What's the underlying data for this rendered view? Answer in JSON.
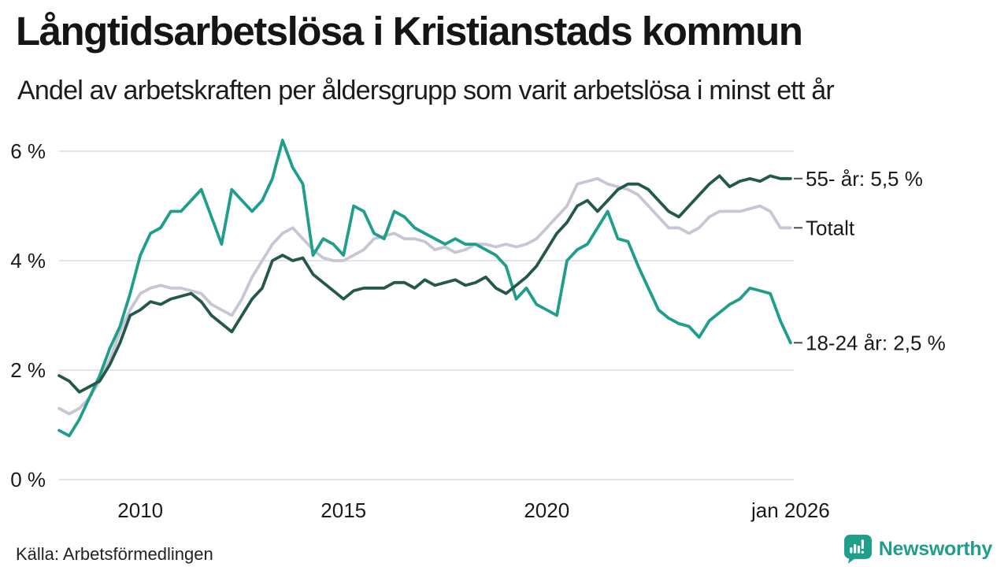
{
  "header": {
    "title": "Långtidsarbetslösa i Kristianstads kommun",
    "subtitle": "Andel av arbetskraften per åldersgrupp som varit arbetslösa i minst ett år"
  },
  "footer": {
    "source": "Källa: Arbetsförmedlingen",
    "brand": "Newsworthy"
  },
  "colors": {
    "accent_teal": "#1f9e8b",
    "dark_green": "#24584a",
    "total_gray": "#c8c6d4",
    "gridline": "#e4e3e9",
    "text": "#1a1a1a",
    "connector": "#4a4a4a"
  },
  "chart_data": {
    "type": "line",
    "title": "Långtidsarbetslösa i Kristianstads kommun",
    "subtitle": "Andel av arbetskraften per åldersgrupp som varit arbetslösa i minst ett år",
    "unit": "% av arbetskraften",
    "x_start": 2008,
    "x_step": 0.25,
    "xlim": [
      2008,
      2026.08
    ],
    "ylim": [
      0,
      6
    ],
    "grid": "horizontal",
    "legend_position": "right-end-labels",
    "yticks": [
      {
        "value": 0,
        "label": "0 %"
      },
      {
        "value": 2,
        "label": "2 %"
      },
      {
        "value": 4,
        "label": "4 %"
      },
      {
        "value": 6,
        "label": "6 %"
      }
    ],
    "xticks": [
      {
        "value": 2010,
        "label": "2010"
      },
      {
        "value": 2015,
        "label": "2015"
      },
      {
        "value": 2020,
        "label": "2020"
      },
      {
        "value": 2026,
        "label": "jan 2026"
      }
    ],
    "series": [
      {
        "name": "55- år",
        "end_label": "55- år: 5,5 %",
        "color": "#24584a",
        "z": 3,
        "values": [
          1.9,
          1.8,
          1.6,
          1.7,
          1.8,
          2.1,
          2.5,
          3.0,
          3.1,
          3.25,
          3.2,
          3.3,
          3.35,
          3.4,
          3.25,
          3.0,
          2.85,
          2.7,
          3.0,
          3.3,
          3.5,
          4.0,
          4.1,
          4.0,
          4.05,
          3.75,
          3.6,
          3.45,
          3.3,
          3.45,
          3.5,
          3.5,
          3.5,
          3.6,
          3.6,
          3.5,
          3.65,
          3.55,
          3.6,
          3.65,
          3.55,
          3.6,
          3.7,
          3.5,
          3.4,
          3.55,
          3.7,
          3.9,
          4.2,
          4.5,
          4.7,
          5.0,
          5.1,
          4.9,
          5.1,
          5.3,
          5.4,
          5.4,
          5.3,
          5.1,
          4.9,
          4.8,
          5.0,
          5.2,
          5.4,
          5.55,
          5.35,
          5.45,
          5.5,
          5.45,
          5.55,
          5.5,
          5.5
        ]
      },
      {
        "name": "Totalt",
        "end_label": "Totalt",
        "color": "#c8c6d4",
        "z": 1,
        "values": [
          1.3,
          1.2,
          1.3,
          1.5,
          1.8,
          2.2,
          2.7,
          3.1,
          3.4,
          3.5,
          3.55,
          3.5,
          3.5,
          3.45,
          3.4,
          3.2,
          3.1,
          3.0,
          3.3,
          3.7,
          4.0,
          4.3,
          4.5,
          4.6,
          4.4,
          4.2,
          4.05,
          4.0,
          4.0,
          4.1,
          4.2,
          4.4,
          4.45,
          4.5,
          4.4,
          4.4,
          4.35,
          4.2,
          4.25,
          4.15,
          4.2,
          4.3,
          4.3,
          4.25,
          4.3,
          4.25,
          4.3,
          4.4,
          4.6,
          4.8,
          5.0,
          5.4,
          5.45,
          5.5,
          5.4,
          5.35,
          5.3,
          5.2,
          5.0,
          4.8,
          4.6,
          4.6,
          4.5,
          4.6,
          4.8,
          4.9,
          4.9,
          4.9,
          4.95,
          5.0,
          4.9,
          4.6,
          4.6
        ]
      },
      {
        "name": "18-24 år",
        "end_label": "18-24 år: 2,5 %",
        "color": "#1f9e8b",
        "z": 2,
        "values": [
          0.9,
          0.8,
          1.1,
          1.5,
          1.9,
          2.4,
          2.8,
          3.4,
          4.1,
          4.5,
          4.6,
          4.9,
          4.9,
          5.1,
          5.3,
          4.8,
          4.3,
          5.3,
          5.1,
          4.9,
          5.1,
          5.5,
          6.2,
          5.7,
          5.4,
          4.1,
          4.4,
          4.3,
          4.1,
          5.0,
          4.9,
          4.5,
          4.4,
          4.9,
          4.8,
          4.6,
          4.5,
          4.4,
          4.3,
          4.4,
          4.3,
          4.3,
          4.2,
          4.1,
          3.9,
          3.3,
          3.5,
          3.2,
          3.1,
          3.0,
          4.0,
          4.2,
          4.3,
          4.6,
          4.9,
          4.4,
          4.35,
          3.9,
          3.5,
          3.1,
          2.95,
          2.85,
          2.8,
          2.6,
          2.9,
          3.05,
          3.2,
          3.3,
          3.5,
          3.45,
          3.4,
          2.9,
          2.5
        ]
      }
    ]
  }
}
